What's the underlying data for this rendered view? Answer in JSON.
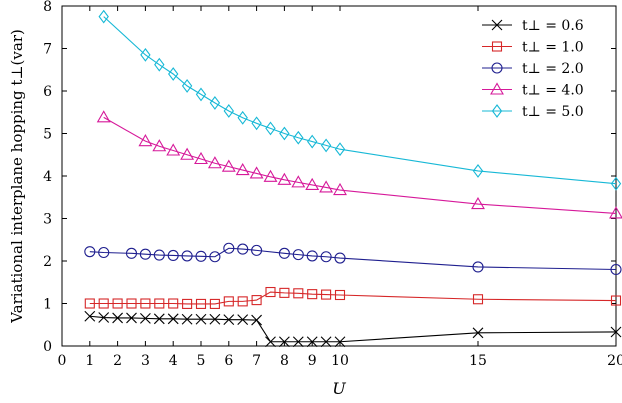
{
  "chart_data": {
    "type": "line",
    "xlabel": "U",
    "ylabel": "Variational interplane hopping t⊥(var)",
    "xlim": [
      0,
      20
    ],
    "ylim": [
      0,
      8
    ],
    "x_ticks": [
      "0",
      "1",
      "2",
      "3",
      "4",
      "5",
      "6",
      "7",
      "8",
      "9",
      "10",
      "15",
      "20"
    ],
    "y_ticks": [
      "0",
      "1",
      "2",
      "3",
      "4",
      "5",
      "6",
      "7",
      "8"
    ],
    "legend_position": "top-right",
    "grid": false,
    "series": [
      {
        "name": "t⊥ = 0.6",
        "color": "#000000",
        "marker": "x",
        "x": [
          1,
          1.5,
          2,
          2.5,
          3,
          3.5,
          4,
          4.5,
          5,
          5.5,
          6,
          6.5,
          7,
          7.5,
          8,
          8.5,
          9,
          9.5,
          10,
          15,
          20
        ],
        "y": [
          0.7,
          0.67,
          0.66,
          0.66,
          0.65,
          0.64,
          0.64,
          0.63,
          0.63,
          0.63,
          0.62,
          0.62,
          0.61,
          0.1,
          0.1,
          0.1,
          0.1,
          0.1,
          0.1,
          0.31,
          0.33
        ]
      },
      {
        "name": "t⊥ = 1.0",
        "color": "#d62728",
        "marker": "square",
        "x": [
          1,
          1.5,
          2,
          2.5,
          3,
          3.5,
          4,
          4.5,
          5,
          5.5,
          6,
          6.5,
          7,
          7.5,
          8,
          8.5,
          9,
          9.5,
          10,
          15,
          20
        ],
        "y": [
          1.0,
          1.0,
          1.0,
          1.0,
          1.0,
          1.0,
          1.0,
          0.99,
          0.99,
          0.99,
          1.05,
          1.05,
          1.08,
          1.27,
          1.25,
          1.24,
          1.22,
          1.21,
          1.2,
          1.1,
          1.07
        ]
      },
      {
        "name": "t⊥ = 2.0",
        "color": "#1f1f8f",
        "marker": "circle",
        "x": [
          1,
          1.5,
          2.5,
          3,
          3.5,
          4,
          4.5,
          5,
          5.5,
          6,
          6.5,
          7,
          8,
          8.5,
          9,
          9.5,
          10,
          15,
          20
        ],
        "y": [
          2.22,
          2.2,
          2.18,
          2.16,
          2.14,
          2.13,
          2.12,
          2.11,
          2.1,
          2.3,
          2.28,
          2.25,
          2.18,
          2.15,
          2.12,
          2.1,
          2.07,
          1.86,
          1.8
        ]
      },
      {
        "name": "t⊥ = 4.0",
        "color": "#d6199a",
        "marker": "triangle",
        "x": [
          1.5,
          3,
          3.5,
          4,
          4.5,
          5,
          5.5,
          6,
          6.5,
          7,
          7.5,
          8,
          8.5,
          9,
          9.5,
          10,
          15,
          20
        ],
        "y": [
          5.38,
          4.82,
          4.7,
          4.6,
          4.5,
          4.4,
          4.3,
          4.22,
          4.14,
          4.06,
          3.98,
          3.91,
          3.85,
          3.79,
          3.73,
          3.67,
          3.34,
          3.12
        ]
      },
      {
        "name": "t⊥ = 5.0",
        "color": "#17b8d6",
        "marker": "diamond",
        "x": [
          1.5,
          3,
          3.5,
          4,
          4.5,
          5,
          5.5,
          6,
          6.5,
          7,
          7.5,
          8,
          8.5,
          9,
          9.5,
          10,
          15,
          20
        ],
        "y": [
          7.75,
          6.85,
          6.62,
          6.4,
          6.12,
          5.92,
          5.72,
          5.53,
          5.37,
          5.24,
          5.12,
          5.0,
          4.9,
          4.81,
          4.72,
          4.63,
          4.12,
          3.82
        ]
      }
    ]
  }
}
